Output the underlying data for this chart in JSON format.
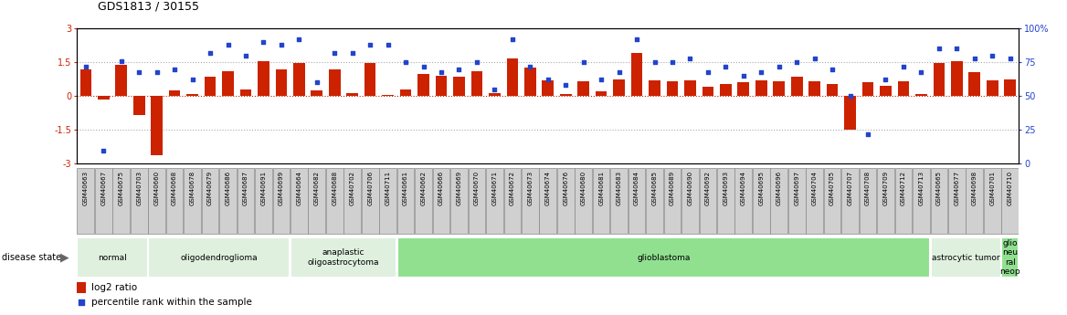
{
  "title": "GDS1813 / 30155",
  "samples": [
    "GSM40663",
    "GSM40667",
    "GSM40675",
    "GSM40703",
    "GSM40660",
    "GSM40668",
    "GSM40678",
    "GSM40679",
    "GSM40686",
    "GSM40687",
    "GSM40691",
    "GSM40699",
    "GSM40664",
    "GSM40682",
    "GSM40688",
    "GSM40702",
    "GSM40706",
    "GSM40711",
    "GSM40661",
    "GSM40662",
    "GSM40666",
    "GSM40669",
    "GSM40670",
    "GSM40671",
    "GSM40672",
    "GSM40673",
    "GSM40674",
    "GSM40676",
    "GSM40680",
    "GSM40681",
    "GSM40683",
    "GSM40684",
    "GSM40685",
    "GSM40689",
    "GSM40690",
    "GSM40692",
    "GSM40693",
    "GSM40694",
    "GSM40695",
    "GSM40696",
    "GSM40697",
    "GSM40704",
    "GSM40705",
    "GSM40707",
    "GSM40708",
    "GSM40709",
    "GSM40712",
    "GSM40713",
    "GSM40665",
    "GSM40677",
    "GSM40698",
    "GSM40701",
    "GSM40710"
  ],
  "log2_ratio": [
    1.2,
    -0.15,
    1.4,
    -0.85,
    -2.6,
    0.25,
    0.1,
    0.85,
    1.1,
    0.3,
    1.55,
    1.2,
    1.45,
    0.25,
    1.2,
    0.15,
    1.45,
    0.05,
    0.3,
    1.0,
    0.9,
    0.85,
    1.1,
    0.15,
    1.65,
    1.25,
    0.7,
    0.1,
    0.65,
    0.2,
    0.75,
    1.9,
    0.7,
    0.65,
    0.7,
    0.4,
    0.55,
    0.6,
    0.7,
    0.65,
    0.85,
    0.65,
    0.55,
    -1.5,
    0.6,
    0.45,
    0.65,
    0.1,
    1.45,
    1.55,
    1.05,
    0.7,
    0.75
  ],
  "percentile": [
    72,
    10,
    76,
    68,
    68,
    70,
    62,
    82,
    88,
    80,
    90,
    88,
    92,
    60,
    82,
    82,
    88,
    88,
    75,
    72,
    68,
    70,
    75,
    55,
    92,
    72,
    62,
    58,
    75,
    62,
    68,
    92,
    75,
    75,
    78,
    68,
    72,
    65,
    68,
    72,
    75,
    78,
    70,
    50,
    22,
    62,
    72,
    68,
    85,
    85,
    78,
    80,
    78
  ],
  "disease_groups": [
    {
      "label": "normal",
      "start": 0,
      "end": 3,
      "color": "#dff0df"
    },
    {
      "label": "oligodendroglioma",
      "start": 4,
      "end": 11,
      "color": "#dff0df"
    },
    {
      "label": "anaplastic\noligoastrocytoma",
      "start": 12,
      "end": 17,
      "color": "#dff0df"
    },
    {
      "label": "glioblastoma",
      "start": 18,
      "end": 47,
      "color": "#90e090"
    },
    {
      "label": "astrocytic tumor",
      "start": 48,
      "end": 51,
      "color": "#dff0df"
    },
    {
      "label": "glio\nneu\nral\nneop",
      "start": 52,
      "end": 52,
      "color": "#90e090"
    }
  ],
  "ylim": [
    -3,
    3
  ],
  "y2lim": [
    0,
    100
  ],
  "bar_color": "#cc2200",
  "dot_color": "#2244cc",
  "yticks": [
    -3,
    -1.5,
    0,
    1.5,
    3
  ],
  "ytick_labels": [
    "-3",
    "-1.5",
    "0",
    "1.5",
    "3"
  ],
  "y2ticks": [
    0,
    25,
    50,
    75,
    100
  ],
  "y2tick_labels": [
    "0",
    "25",
    "50",
    "75",
    "100%"
  ],
  "hline_dotted": [
    -1.5,
    1.5
  ],
  "hline_red_dotted": 0,
  "background_color": "#ffffff",
  "sample_box_color": "#d0d0d0",
  "sample_box_edge": "#888888"
}
